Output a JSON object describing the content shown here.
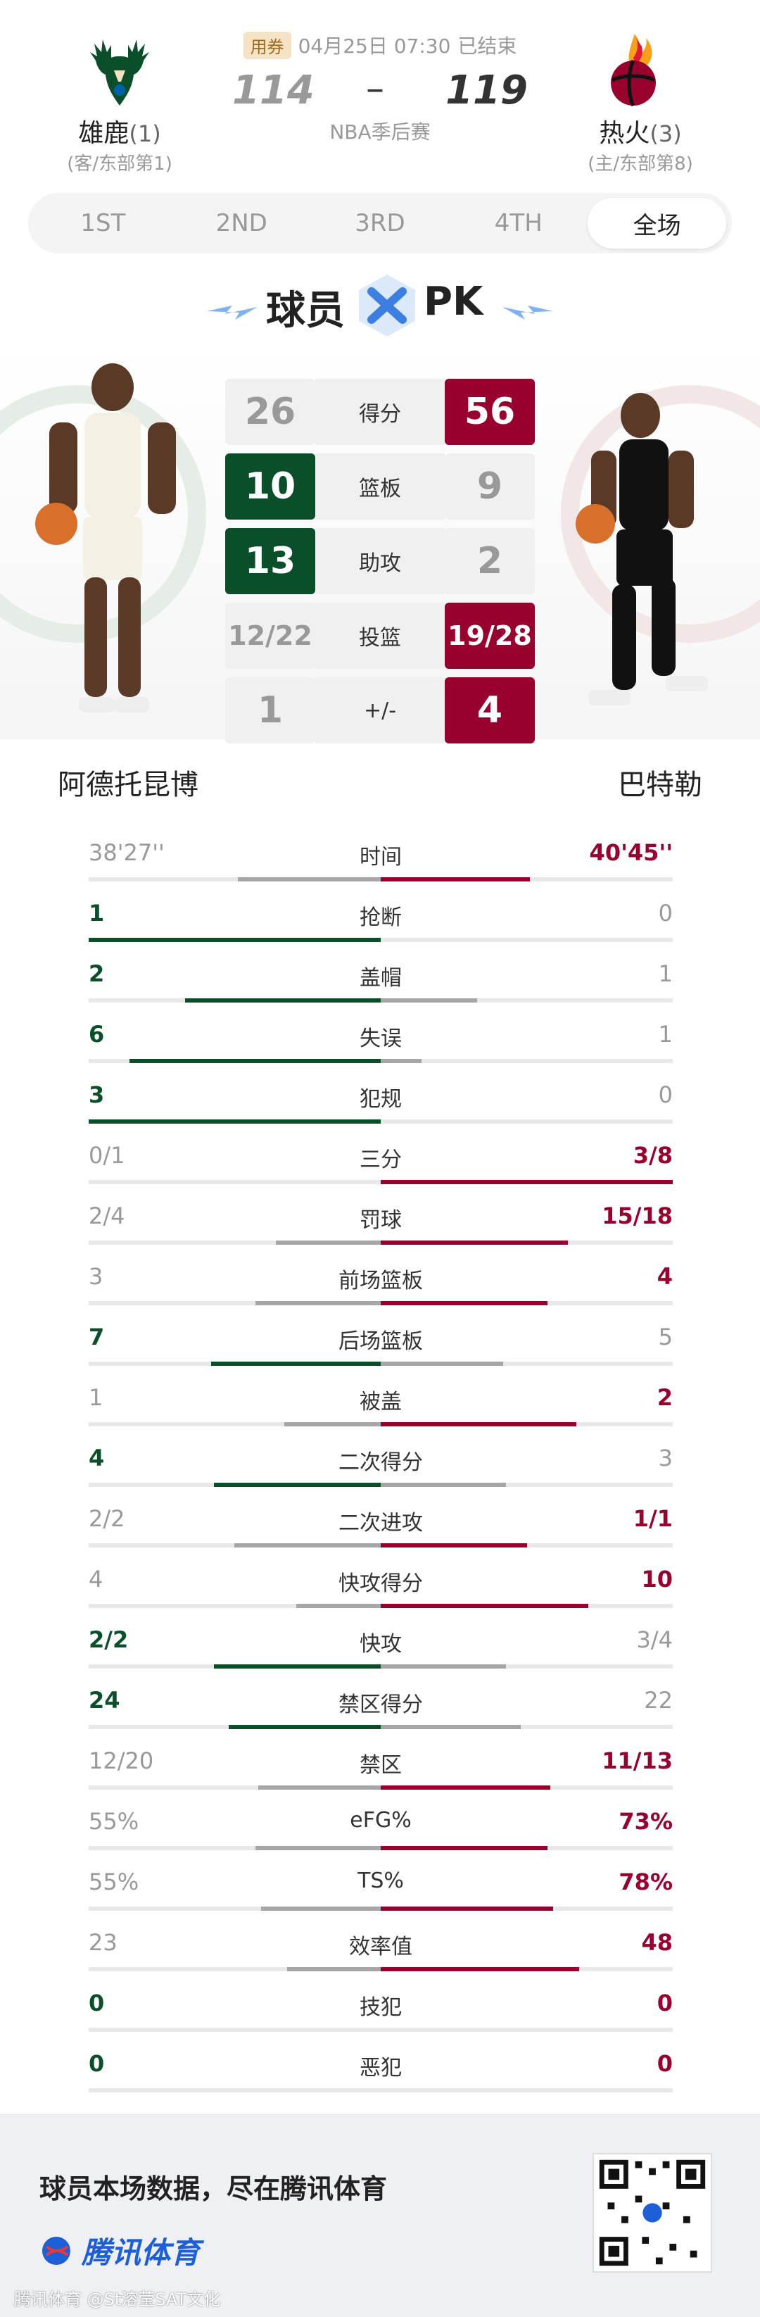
{
  "header": {
    "ticket_label": "用券",
    "date_time": "04月25日 07:30",
    "status": "已结束",
    "away_score": "114",
    "home_score": "119",
    "score_dash": "–",
    "game_type": "NBA季后赛",
    "away_team": {
      "name": "雄鹿",
      "seed": "(1)",
      "sub": "(客/东部第1)",
      "color": "#0b4f2a"
    },
    "home_team": {
      "name": "热火",
      "seed": "(3)",
      "sub": "(主/东部第8)",
      "color": "#98002e"
    }
  },
  "tabs": [
    {
      "label": "1ST",
      "active": false
    },
    {
      "label": "2ND",
      "active": false
    },
    {
      "label": "3RD",
      "active": false
    },
    {
      "label": "4TH",
      "active": false
    },
    {
      "label": "全场",
      "active": true
    }
  ],
  "pk_banner": {
    "left": "球员",
    "right": "PK"
  },
  "pk_table": [
    {
      "label": "得分",
      "left": "26",
      "right": "56",
      "lead": "right"
    },
    {
      "label": "篮板",
      "left": "10",
      "right": "9",
      "lead": "left"
    },
    {
      "label": "助攻",
      "left": "13",
      "right": "2",
      "lead": "left"
    },
    {
      "label": "投篮",
      "left": "12/22",
      "right": "19/28",
      "lead": "right"
    },
    {
      "label": "+/-",
      "left": "1",
      "right": "4",
      "lead": "right"
    }
  ],
  "players": {
    "left": "阿德托昆博",
    "right": "巴特勒"
  },
  "stats": [
    {
      "label": "时间",
      "left": "38'27''",
      "right": "40'45''",
      "lead": "right",
      "lw": 0.49,
      "rw": 0.51
    },
    {
      "label": "抢断",
      "left": "1",
      "right": "0",
      "lead": "left",
      "lw": 1.0,
      "rw": 0.0
    },
    {
      "label": "盖帽",
      "left": "2",
      "right": "1",
      "lead": "left",
      "lw": 0.67,
      "rw": 0.33
    },
    {
      "label": "失误",
      "left": "6",
      "right": "1",
      "lead": "left",
      "lw": 0.86,
      "rw": 0.14
    },
    {
      "label": "犯规",
      "left": "3",
      "right": "0",
      "lead": "left",
      "lw": 1.0,
      "rw": 0.0
    },
    {
      "label": "三分",
      "left": "0/1",
      "right": "3/8",
      "lead": "right",
      "lw": 0.0,
      "rw": 1.0
    },
    {
      "label": "罚球",
      "left": "2/4",
      "right": "15/18",
      "lead": "right",
      "lw": 0.36,
      "rw": 0.64
    },
    {
      "label": "前场篮板",
      "left": "3",
      "right": "4",
      "lead": "right",
      "lw": 0.43,
      "rw": 0.57
    },
    {
      "label": "后场篮板",
      "left": "7",
      "right": "5",
      "lead": "left",
      "lw": 0.58,
      "rw": 0.42
    },
    {
      "label": "被盖",
      "left": "1",
      "right": "2",
      "lead": "right",
      "lw": 0.33,
      "rw": 0.67
    },
    {
      "label": "二次得分",
      "left": "4",
      "right": "3",
      "lead": "left",
      "lw": 0.57,
      "rw": 0.43
    },
    {
      "label": "二次进攻",
      "left": "2/2",
      "right": "1/1",
      "lead": "right",
      "lw": 0.5,
      "rw": 0.5
    },
    {
      "label": "快攻得分",
      "left": "4",
      "right": "10",
      "lead": "right",
      "lw": 0.29,
      "rw": 0.71
    },
    {
      "label": "快攻",
      "left": "2/2",
      "right": "3/4",
      "lead": "left",
      "lw": 0.57,
      "rw": 0.43
    },
    {
      "label": "禁区得分",
      "left": "24",
      "right": "22",
      "lead": "left",
      "lw": 0.52,
      "rw": 0.48
    },
    {
      "label": "禁区",
      "left": "12/20",
      "right": "11/13",
      "lead": "right",
      "lw": 0.42,
      "rw": 0.58
    },
    {
      "label": "eFG%",
      "left": "55%",
      "right": "73%",
      "lead": "right",
      "lw": 0.43,
      "rw": 0.57
    },
    {
      "label": "TS%",
      "left": "55%",
      "right": "78%",
      "lead": "right",
      "lw": 0.41,
      "rw": 0.59
    },
    {
      "label": "效率值",
      "left": "23",
      "right": "48",
      "lead": "right",
      "lw": 0.32,
      "rw": 0.68
    },
    {
      "label": "技犯",
      "left": "0",
      "right": "0",
      "lead": "both",
      "lw": 0.0,
      "rw": 0.0
    },
    {
      "label": "恶犯",
      "left": "0",
      "right": "0",
      "lead": "both",
      "lw": 0.0,
      "rw": 0.0
    }
  ],
  "footer": {
    "slogan": "球员本场数据，尽在腾讯体育",
    "brand": "腾讯体育",
    "watermark": "腾讯体育 @St溶莹SAT文化"
  }
}
